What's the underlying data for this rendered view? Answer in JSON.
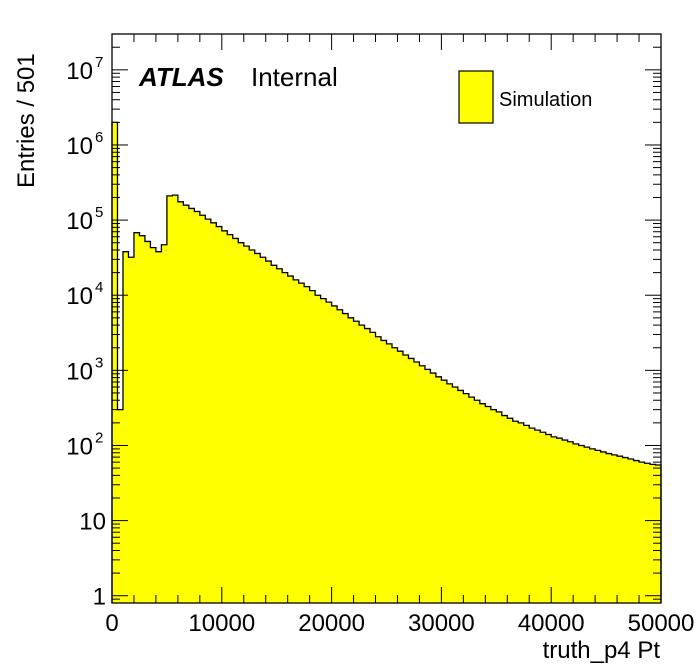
{
  "chart_data": {
    "type": "histogram",
    "title": "",
    "xlabel": "truth_p4 Pt",
    "ylabel": "Entries / 501",
    "xlim": [
      0,
      50000
    ],
    "ylim": [
      0.8,
      30000000
    ],
    "yscale": "log",
    "bin_width": 501,
    "fill_color": "#ffff00",
    "line_color": "#000000",
    "x_tick_labels": [
      "0",
      "10000",
      "20000",
      "30000",
      "40000",
      "50000"
    ],
    "x_ticks": [
      0,
      10000,
      20000,
      30000,
      40000,
      50000
    ],
    "y_ticks": [
      {
        "base": "1",
        "exp": "",
        "value": 1
      },
      {
        "base": "10",
        "exp": "",
        "value": 10
      },
      {
        "base": "10",
        "exp": "2",
        "value": 100
      },
      {
        "base": "10",
        "exp": "3",
        "value": 1000
      },
      {
        "base": "10",
        "exp": "4",
        "value": 10000
      },
      {
        "base": "10",
        "exp": "5",
        "value": 100000
      },
      {
        "base": "10",
        "exp": "6",
        "value": 1000000
      },
      {
        "base": "10",
        "exp": "7",
        "value": 10000000
      }
    ],
    "annotation": {
      "bold_italic": "ATLAS",
      "normal": "Internal"
    },
    "legend": {
      "position": "top-right",
      "entries": [
        "Simulation"
      ]
    },
    "values": [
      2000000,
      300,
      38000,
      32000,
      68000,
      62000,
      52000,
      43000,
      38000,
      47000,
      210000,
      215000,
      175000,
      158000,
      143000,
      130000,
      116000,
      103000,
      92000,
      82000,
      72000,
      64000,
      57000,
      50000,
      45000,
      40000,
      36000,
      32000,
      28500,
      25000,
      22500,
      20000,
      18000,
      16000,
      14500,
      13000,
      11500,
      10000,
      9000,
      8100,
      7200,
      6400,
      5700,
      5000,
      4500,
      4000,
      3600,
      3200,
      2800,
      2500,
      2250,
      2000,
      1800,
      1600,
      1440,
      1290,
      1150,
      1030,
      920,
      820,
      740,
      660,
      600,
      540,
      490,
      440,
      400,
      360,
      330,
      300,
      280,
      250,
      230,
      210,
      200,
      185,
      170,
      160,
      150,
      140,
      130,
      125,
      118,
      112,
      105,
      100,
      95,
      90,
      86,
      82,
      78,
      75,
      72,
      69,
      66,
      63,
      60,
      58,
      56,
      55
    ]
  }
}
